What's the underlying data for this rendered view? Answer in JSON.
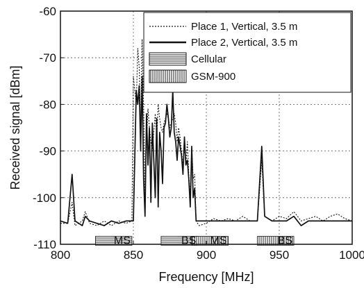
{
  "chart_data": {
    "type": "line",
    "title": "",
    "xlabel": "Frequency [MHz]",
    "ylabel": "Received signal [dBm]",
    "xlim": [
      800,
      1000
    ],
    "ylim": [
      -110,
      -60
    ],
    "x_ticks": [
      800,
      850,
      900,
      950,
      1000
    ],
    "y_ticks": [
      -110,
      -100,
      -90,
      -80,
      -70,
      -60
    ],
    "grid": "dotted",
    "legend_position": "top-right",
    "series": [
      {
        "name": "Place 1, Vertical, 3.5 m",
        "style": "dotted",
        "x": [
          800,
          805,
          808,
          810,
          815,
          817,
          820,
          825,
          830,
          835,
          840,
          845,
          849,
          850,
          852,
          853,
          854,
          855,
          856,
          857,
          858,
          859,
          860,
          861,
          862,
          863,
          864,
          865,
          866,
          867,
          868,
          869,
          870,
          871,
          872,
          873,
          874,
          875,
          876,
          877,
          878,
          879,
          880,
          881,
          882,
          883,
          884,
          885,
          886,
          887,
          888,
          889,
          890,
          891,
          892,
          893,
          895,
          900,
          905,
          910,
          915,
          920,
          925,
          930,
          935,
          938,
          940,
          945,
          950,
          955,
          960,
          965,
          970,
          975,
          980,
          985,
          990,
          995,
          1000
        ],
        "y": [
          -105.5,
          -105.5,
          -101,
          -106,
          -105,
          -103,
          -105.5,
          -106,
          -105,
          -106,
          -105,
          -105.5,
          -105,
          -74,
          -80,
          -68,
          -72,
          -85,
          -66,
          -80,
          -100,
          -88,
          -81,
          -85,
          -88,
          -90,
          -86,
          -82,
          -87,
          -80,
          -83,
          -85,
          -86,
          -84,
          -83,
          -82,
          -83,
          -85,
          -84,
          -83,
          -82,
          -84,
          -88,
          -85,
          -87,
          -90,
          -93,
          -89,
          -93,
          -88,
          -95,
          -100,
          -89,
          -96,
          -95,
          -105,
          -106,
          -105.5,
          -104.5,
          -105,
          -104.5,
          -105,
          -104,
          -105,
          -105,
          -92,
          -104,
          -105,
          -104,
          -104.5,
          -103,
          -105,
          -104.5,
          -104,
          -105,
          -104,
          -103.5,
          -104.5,
          -105
        ]
      },
      {
        "name": "Place 2, Vertical, 3.5 m",
        "style": "solid",
        "x": [
          800,
          805,
          808,
          810,
          815,
          817,
          820,
          825,
          830,
          835,
          840,
          845,
          849,
          850,
          852,
          853,
          854,
          855,
          856,
          857,
          858,
          859,
          860,
          861,
          862,
          863,
          864,
          865,
          866,
          867,
          868,
          869,
          870,
          871,
          872,
          873,
          874,
          875,
          876,
          877,
          878,
          879,
          880,
          881,
          882,
          883,
          884,
          885,
          886,
          887,
          888,
          889,
          890,
          891,
          892,
          893,
          895,
          900,
          905,
          910,
          915,
          920,
          925,
          930,
          935,
          938,
          940,
          945,
          950,
          955,
          960,
          965,
          970,
          975,
          980,
          985,
          990,
          995,
          1000
        ],
        "y": [
          -105,
          -105.5,
          -95,
          -105,
          -106,
          -104,
          -105,
          -105.5,
          -106,
          -105,
          -105.5,
          -105,
          -105,
          -105,
          -77,
          -80,
          -76,
          -90,
          -74,
          -96,
          -104,
          -82,
          -93,
          -85,
          -101,
          -84,
          -92,
          -100,
          -83,
          -102,
          -86,
          -90,
          -97,
          -85,
          -84,
          -80,
          -83,
          -87,
          -85,
          -77,
          -86,
          -88,
          -92,
          -87,
          -89,
          -91,
          -95,
          -87,
          -93,
          -92,
          -96,
          -102,
          -89,
          -100,
          -98,
          -105,
          -105,
          -105,
          -105,
          -105,
          -105,
          -105,
          -105,
          -105,
          -105,
          -89,
          -104,
          -105,
          -105,
          -105,
          -104,
          -106,
          -105,
          -105,
          -105,
          -105,
          -105,
          -105,
          -105
        ]
      }
    ],
    "bands": [
      {
        "name": "Cellular",
        "pattern": "horizontal",
        "segments": [
          [
            824,
            849
          ],
          [
            869,
            894
          ]
        ],
        "labels": [
          "MS",
          "BS"
        ]
      },
      {
        "name": "GSM-900",
        "pattern": "vertical",
        "segments": [
          [
            890,
            915
          ],
          [
            935,
            960
          ]
        ],
        "labels": [
          "MS",
          "BS"
        ]
      }
    ]
  }
}
